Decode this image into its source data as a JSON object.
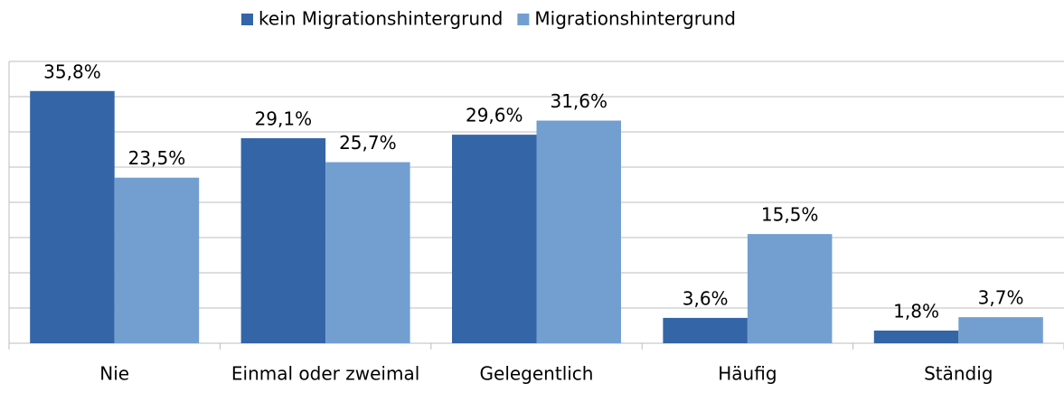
{
  "chart_data": {
    "type": "bar",
    "categories": [
      "Nie",
      "Einmal oder zweimal",
      "Gelegentlich",
      "Häufig",
      "Ständig"
    ],
    "series": [
      {
        "name": "kein Migrationshintergrund",
        "color": "#3465a7",
        "values": [
          35.8,
          29.1,
          29.6,
          3.6,
          1.8
        ],
        "value_labels": [
          "35,8%",
          "29,1%",
          "29,6%",
          "3,6%",
          "1,8%"
        ]
      },
      {
        "name": "Migrationshintergrund",
        "color": "#729fd0",
        "values": [
          23.5,
          25.7,
          31.6,
          15.5,
          3.7
        ],
        "value_labels": [
          "23,5%",
          "25,7%",
          "31,6%",
          "15,5%",
          "3,7%"
        ]
      }
    ],
    "ylim": [
      0,
      40
    ],
    "yticks": [
      0,
      5,
      10,
      15,
      20,
      25,
      30,
      35,
      40
    ],
    "grid": true,
    "legend": "top"
  }
}
